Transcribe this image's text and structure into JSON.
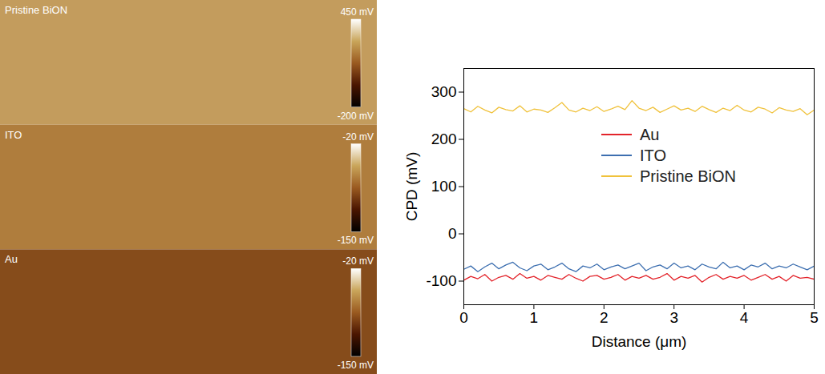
{
  "chart_data": [
    {
      "type": "heatmap",
      "panels": [
        {
          "title": "Pristine BiON",
          "value": 265,
          "colorbar_range": [
            -200,
            450
          ],
          "colorbar_ticks": [
            {
              "value": 450,
              "label": "450 mV"
            },
            {
              "value": -200,
              "label": "-200 mV"
            }
          ]
        },
        {
          "title": "ITO",
          "value": -70,
          "colorbar_range": [
            -150,
            -20
          ],
          "colorbar_ticks": [
            {
              "value": -20,
              "label": "-20 mV"
            },
            {
              "value": -150,
              "label": "-150 mV"
            }
          ]
        },
        {
          "title": "Au",
          "value": -92,
          "colorbar_range": [
            -150,
            -20
          ],
          "colorbar_ticks": [
            {
              "value": -20,
              "label": "-20 mV"
            },
            {
              "value": -150,
              "label": "-150 mV"
            }
          ]
        }
      ]
    },
    {
      "type": "line",
      "x_label": "Distance (μm)",
      "y_label": "CPD (mV)",
      "xlim": [
        0,
        5
      ],
      "xticks": [
        0,
        1,
        2,
        3,
        4,
        5
      ],
      "ylim": [
        -150,
        350
      ],
      "yticks": [
        -100,
        0,
        100,
        200,
        300
      ],
      "legend": "right",
      "grid": false,
      "x": [
        0,
        0.1,
        0.2,
        0.3,
        0.4,
        0.5,
        0.6,
        0.7,
        0.8,
        0.9,
        1,
        1.1,
        1.2,
        1.3,
        1.4,
        1.5,
        1.6,
        1.7,
        1.8,
        1.9,
        2,
        2.1,
        2.2,
        2.3,
        2.4,
        2.5,
        2.6,
        2.7,
        2.8,
        2.9,
        3,
        3.1,
        3.2,
        3.3,
        3.4,
        3.5,
        3.6,
        3.7,
        3.8,
        3.9,
        4,
        4.1,
        4.2,
        4.3,
        4.4,
        4.5,
        4.6,
        4.7,
        4.8,
        4.9,
        5
      ],
      "series": [
        {
          "name": "Au",
          "color": "#e3242b",
          "values": [
            -98,
            -90,
            -95,
            -86,
            -100,
            -92,
            -88,
            -96,
            -84,
            -94,
            -90,
            -98,
            -88,
            -92,
            -96,
            -86,
            -94,
            -100,
            -90,
            -88,
            -96,
            -92,
            -86,
            -98,
            -90,
            -94,
            -88,
            -96,
            -92,
            -84,
            -98,
            -90,
            -94,
            -88,
            -102,
            -92,
            -86,
            -96,
            -90,
            -94,
            -88,
            -98,
            -92,
            -86,
            -96,
            -90,
            -100,
            -88,
            -94,
            -92,
            -96
          ]
        },
        {
          "name": "ITO",
          "color": "#3d6fb0",
          "values": [
            -75,
            -68,
            -80,
            -70,
            -62,
            -74,
            -66,
            -60,
            -72,
            -78,
            -68,
            -64,
            -76,
            -70,
            -62,
            -74,
            -80,
            -68,
            -72,
            -64,
            -76,
            -70,
            -66,
            -74,
            -68,
            -62,
            -78,
            -70,
            -66,
            -74,
            -62,
            -72,
            -68,
            -76,
            -64,
            -70,
            -74,
            -60,
            -72,
            -68,
            -76,
            -66,
            -70,
            -62,
            -74,
            -68,
            -72,
            -64,
            -70,
            -76,
            -68
          ]
        },
        {
          "name": "Pristine BiON",
          "color": "#f0c23c",
          "values": [
            265,
            258,
            270,
            262,
            256,
            268,
            263,
            260,
            271,
            258,
            264,
            262,
            257,
            267,
            278,
            262,
            258,
            266,
            261,
            269,
            259,
            264,
            270,
            263,
            282,
            266,
            261,
            268,
            257,
            264,
            271,
            262,
            266,
            259,
            270,
            263,
            257,
            266,
            261,
            272,
            262,
            258,
            268,
            264,
            256,
            267,
            262,
            259,
            265,
            252,
            262
          ]
        }
      ]
    }
  ]
}
